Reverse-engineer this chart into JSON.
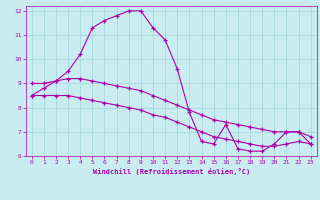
{
  "xlabel": "Windchill (Refroidissement éolien,°C)",
  "background_color": "#c8ecf0",
  "grid_color": "#a8d8e0",
  "line_color": "#aa00aa",
  "xlim": [
    -0.5,
    23.5
  ],
  "ylim": [
    6,
    12.2
  ],
  "yticks": [
    6,
    7,
    8,
    9,
    10,
    11,
    12
  ],
  "xticks": [
    0,
    1,
    2,
    3,
    4,
    5,
    6,
    7,
    8,
    9,
    10,
    11,
    12,
    13,
    14,
    15,
    16,
    17,
    18,
    19,
    20,
    21,
    22,
    23
  ],
  "lines": [
    {
      "x": [
        0,
        1,
        2,
        3,
        4,
        5,
        6,
        7,
        8,
        9,
        10,
        11,
        12,
        13,
        14,
        15,
        16,
        17,
        18,
        19,
        20,
        21,
        22,
        23
      ],
      "y": [
        8.5,
        8.8,
        9.1,
        9.5,
        10.2,
        11.3,
        11.6,
        11.8,
        12.0,
        12.0,
        11.3,
        10.8,
        9.6,
        7.8,
        6.6,
        6.5,
        7.3,
        6.3,
        6.2,
        6.2,
        6.5,
        7.0,
        7.0,
        6.5
      ]
    },
    {
      "x": [
        0,
        1,
        2,
        3,
        4,
        5,
        6,
        7,
        8,
        9,
        10,
        11,
        12,
        13,
        14,
        15,
        16,
        17,
        18,
        19,
        20,
        21,
        22,
        23
      ],
      "y": [
        9.0,
        9.0,
        9.1,
        9.2,
        9.2,
        9.1,
        9.0,
        8.9,
        8.8,
        8.7,
        8.5,
        8.3,
        8.1,
        7.9,
        7.7,
        7.5,
        7.4,
        7.3,
        7.2,
        7.1,
        7.0,
        7.0,
        7.0,
        6.8
      ]
    },
    {
      "x": [
        0,
        1,
        2,
        3,
        4,
        5,
        6,
        7,
        8,
        9,
        10,
        11,
        12,
        13,
        14,
        15,
        16,
        17,
        18,
        19,
        20,
        21,
        22,
        23
      ],
      "y": [
        8.5,
        8.5,
        8.5,
        8.5,
        8.4,
        8.3,
        8.2,
        8.1,
        8.0,
        7.9,
        7.7,
        7.6,
        7.4,
        7.2,
        7.0,
        6.8,
        6.7,
        6.6,
        6.5,
        6.4,
        6.4,
        6.5,
        6.6,
        6.5
      ]
    }
  ]
}
